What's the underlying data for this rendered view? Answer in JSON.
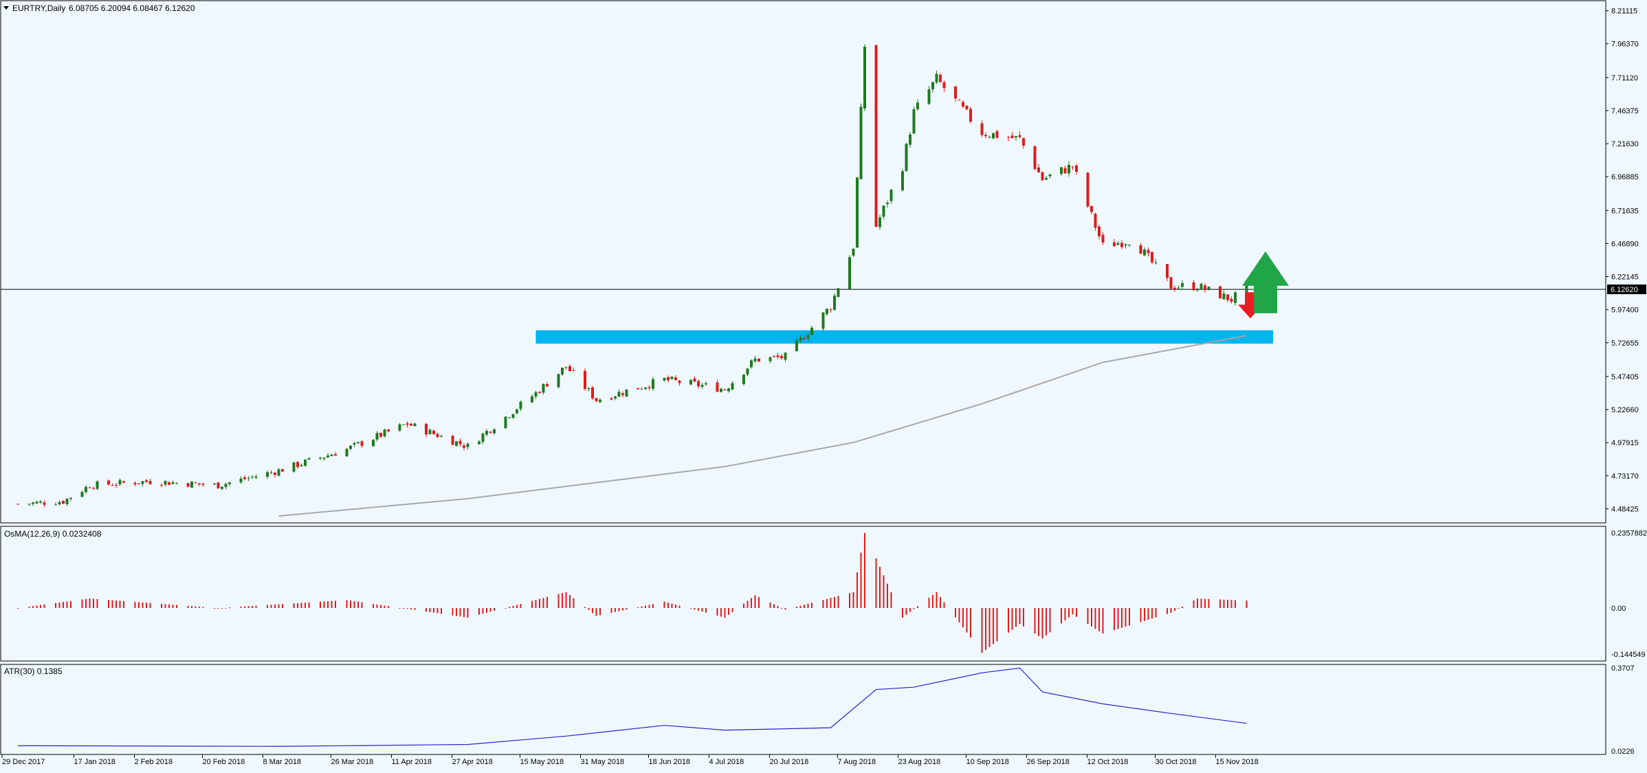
{
  "header": {
    "symbol": "EURTRY,Daily",
    "ohlc": "6.08705 6.20094 6.08467 6.12620"
  },
  "colors": {
    "background": "#f0f8ff",
    "bull": "#1f7a1f",
    "bear": "#e01a1a",
    "grid_line": "#000000",
    "ma_line": "#a8a8a8",
    "zone": "#00b4ee",
    "arrow_down": "#ee1c24",
    "arrow_up": "#20a548",
    "osma": "#e01a1a",
    "atr": "#2222cc"
  },
  "icons": {
    "down_arrow": "down-arrow-icon",
    "up_arrow": "up-arrow-icon",
    "header_marker": "triangle-down-icon"
  },
  "price_panel": {
    "ticks": [
      "8.21115",
      "7.96370",
      "7.71120",
      "7.46375",
      "7.21630",
      "6.96885",
      "6.71635",
      "6.46890",
      "6.22145",
      "5.97400",
      "5.72655",
      "5.47405",
      "5.22660",
      "4.97915",
      "4.73170",
      "4.48425"
    ],
    "last_price": "6.12620",
    "ylim": [
      4.43,
      8.24
    ]
  },
  "osma_panel": {
    "label": "OsMA(12,26,9) 0.0232408",
    "ticks": [
      "0.2357882",
      "0.00",
      "-0.144549"
    ]
  },
  "atr_panel": {
    "label": "ATR(30) 0.1385",
    "ticks": [
      "0.3707",
      "0.0226"
    ]
  },
  "x_labels": [
    "29 Dec 2017",
    "17 Jan 2018",
    "2 Feb 2018",
    "20 Feb 2018",
    "8 Mar 2018",
    "26 Mar 2018",
    "11 Apr 2018",
    "27 Apr 2018",
    "15 May 2018",
    "31 May 2018",
    "18 Jun 2018",
    "4 Jul 2018",
    "20 Jul 2018",
    "7 Aug 2018",
    "23 Aug 2018",
    "10 Sep 2018",
    "26 Sep 2018",
    "12 Oct 2018",
    "30 Oct 2018",
    "15 Nov 2018"
  ],
  "chart_data": [
    {
      "type": "candlestick",
      "title": "EURTRY,Daily",
      "x_range": [
        "29 Dec 2017",
        "19 Nov 2018"
      ],
      "ylim": [
        4.43,
        8.24
      ],
      "close_path": [
        {
          "x": "29 Dec 2017",
          "y": 4.52
        },
        {
          "x": "10 Jan 2018",
          "y": 4.54
        },
        {
          "x": "17 Jan 2018",
          "y": 4.66
        },
        {
          "x": "2 Feb 2018",
          "y": 4.69
        },
        {
          "x": "20 Feb 2018",
          "y": 4.66
        },
        {
          "x": "8 Mar 2018",
          "y": 4.77
        },
        {
          "x": "26 Mar 2018",
          "y": 4.93
        },
        {
          "x": "11 Apr 2018",
          "y": 5.12
        },
        {
          "x": "27 Apr 2018",
          "y": 4.95
        },
        {
          "x": "15 May 2018",
          "y": 5.35
        },
        {
          "x": "23 May 2018",
          "y": 5.55
        },
        {
          "x": "31 May 2018",
          "y": 5.3
        },
        {
          "x": "18 Jun 2018",
          "y": 5.45
        },
        {
          "x": "4 Jul 2018",
          "y": 5.38
        },
        {
          "x": "12 Jul 2018",
          "y": 5.6
        },
        {
          "x": "20 Jul 2018",
          "y": 5.62
        },
        {
          "x": "1 Aug 2018",
          "y": 6.0
        },
        {
          "x": "7 Aug 2018",
          "y": 6.45
        },
        {
          "x": "10 Aug 2018",
          "y": 7.95
        },
        {
          "x": "13 Aug 2018",
          "y": 6.6
        },
        {
          "x": "20 Aug 2018",
          "y": 7.05
        },
        {
          "x": "23 Aug 2018",
          "y": 7.45
        },
        {
          "x": "29 Aug 2018",
          "y": 7.7
        },
        {
          "x": "10 Sep 2018",
          "y": 7.3
        },
        {
          "x": "20 Sep 2018",
          "y": 7.25
        },
        {
          "x": "26 Sep 2018",
          "y": 6.95
        },
        {
          "x": "4 Oct 2018",
          "y": 7.05
        },
        {
          "x": "12 Oct 2018",
          "y": 6.45
        },
        {
          "x": "20 Oct 2018",
          "y": 6.5
        },
        {
          "x": "30 Oct 2018",
          "y": 6.15
        },
        {
          "x": "6 Nov 2018",
          "y": 6.15
        },
        {
          "x": "15 Nov 2018",
          "y": 6.05
        },
        {
          "x": "19 Nov 2018",
          "y": 6.13
        }
      ],
      "moving_average": [
        {
          "x": "8 Mar 2018",
          "y": 4.43
        },
        {
          "x": "27 Apr 2018",
          "y": 4.56
        },
        {
          "x": "4 Jul 2018",
          "y": 4.8
        },
        {
          "x": "7 Aug 2018",
          "y": 4.98
        },
        {
          "x": "10 Sep 2018",
          "y": 5.27
        },
        {
          "x": "12 Oct 2018",
          "y": 5.58
        },
        {
          "x": "19 Nov 2018",
          "y": 5.78
        }
      ],
      "support_zone": {
        "from": "15 May 2018",
        "to": "26 Nov 2018",
        "y_low": 5.72,
        "y_high": 5.82
      },
      "horizontal_line": 6.1262,
      "annotations": [
        {
          "type": "arrow-down",
          "x": "20 Nov 2018",
          "y": 5.95
        },
        {
          "type": "arrow-up",
          "x": "24 Nov 2018",
          "y": 6.05
        }
      ]
    },
    {
      "type": "bar",
      "title": "OsMA(12,26,9) 0.0232408",
      "ylim": [
        -0.155,
        0.245
      ],
      "series": [
        {
          "points": [
            {
              "x": "29 Dec 2017",
              "y": 0.0
            },
            {
              "x": "17 Jan 2018",
              "y": 0.03
            },
            {
              "x": "20 Feb 2018",
              "y": 0.0
            },
            {
              "x": "26 Mar 2018",
              "y": 0.025
            },
            {
              "x": "27 Apr 2018",
              "y": -0.03
            },
            {
              "x": "23 May 2018",
              "y": 0.05
            },
            {
              "x": "31 May 2018",
              "y": -0.025
            },
            {
              "x": "18 Jun 2018",
              "y": 0.02
            },
            {
              "x": "4 Jul 2018",
              "y": -0.03
            },
            {
              "x": "12 Jul 2018",
              "y": 0.04
            },
            {
              "x": "20 Jul 2018",
              "y": -0.005
            },
            {
              "x": "7 Aug 2018",
              "y": 0.05
            },
            {
              "x": "10 Aug 2018",
              "y": 0.235
            },
            {
              "x": "20 Aug 2018",
              "y": -0.03
            },
            {
              "x": "29 Aug 2018",
              "y": 0.05
            },
            {
              "x": "10 Sep 2018",
              "y": -0.14
            },
            {
              "x": "20 Sep 2018",
              "y": -0.05
            },
            {
              "x": "26 Sep 2018",
              "y": -0.095
            },
            {
              "x": "4 Oct 2018",
              "y": -0.02
            },
            {
              "x": "12 Oct 2018",
              "y": -0.08
            },
            {
              "x": "30 Oct 2018",
              "y": -0.015
            },
            {
              "x": "6 Nov 2018",
              "y": 0.03
            },
            {
              "x": "19 Nov 2018",
              "y": 0.023
            }
          ]
        }
      ]
    },
    {
      "type": "line",
      "title": "ATR(30) 0.1385",
      "ylim": [
        0.0226,
        0.3707
      ],
      "series": [
        {
          "points": [
            {
              "x": "29 Dec 2017",
              "y": 0.045
            },
            {
              "x": "8 Mar 2018",
              "y": 0.042
            },
            {
              "x": "27 Apr 2018",
              "y": 0.05
            },
            {
              "x": "23 May 2018",
              "y": 0.085
            },
            {
              "x": "18 Jun 2018",
              "y": 0.13
            },
            {
              "x": "4 Jul 2018",
              "y": 0.11
            },
            {
              "x": "1 Aug 2018",
              "y": 0.12
            },
            {
              "x": "13 Aug 2018",
              "y": 0.28
            },
            {
              "x": "23 Aug 2018",
              "y": 0.29
            },
            {
              "x": "10 Sep 2018",
              "y": 0.35
            },
            {
              "x": "20 Sep 2018",
              "y": 0.37
            },
            {
              "x": "26 Sep 2018",
              "y": 0.27
            },
            {
              "x": "12 Oct 2018",
              "y": 0.22
            },
            {
              "x": "30 Oct 2018",
              "y": 0.18
            },
            {
              "x": "19 Nov 2018",
              "y": 0.1385
            }
          ]
        }
      ]
    }
  ]
}
